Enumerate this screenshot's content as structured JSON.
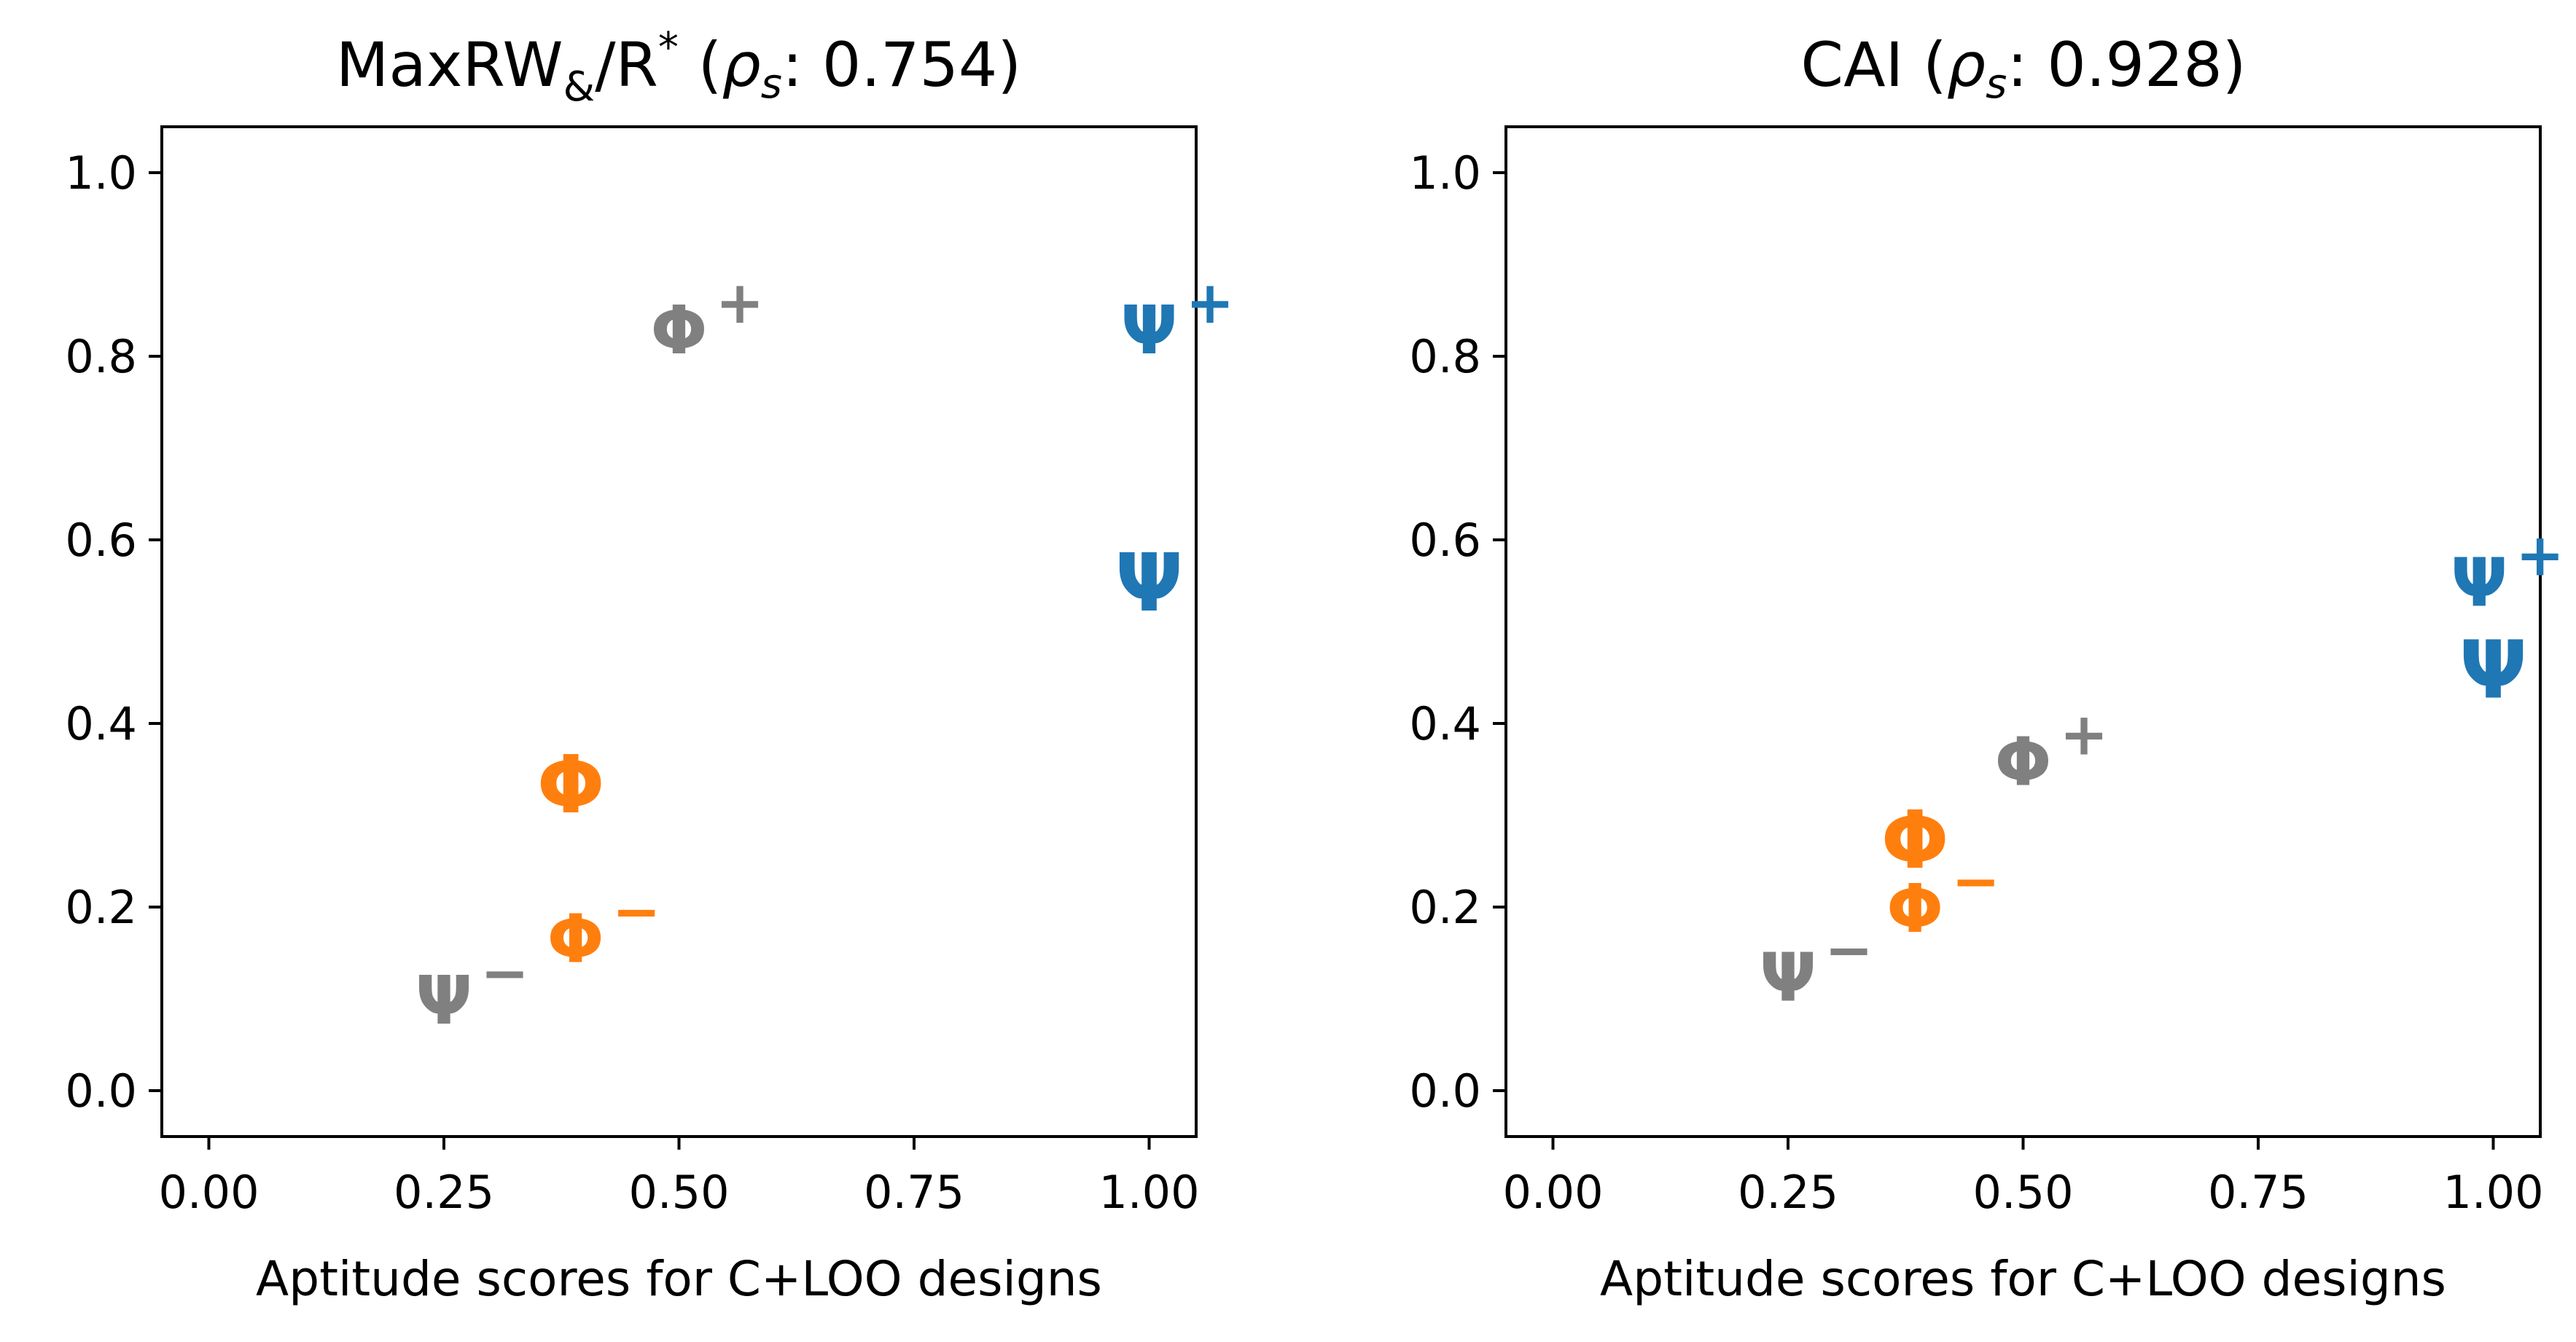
{
  "chart_data": [
    {
      "type": "scatter",
      "title": {
        "main": "MaxRW",
        "sub": "&",
        "tail": "/R",
        "sup": "*",
        "open": " (",
        "rho": "ρ",
        "rho_sub": "s",
        "value": ": 0.754)"
      },
      "xlabel": "Aptitude scores for C+LOO designs",
      "ylabel": "",
      "xlim": [
        -0.05,
        1.05
      ],
      "ylim": [
        -0.05,
        1.05
      ],
      "xticks": [
        "0.00",
        "0.25",
        "0.50",
        "0.75",
        "1.00"
      ],
      "yticks": [
        "0.0",
        "0.2",
        "0.4",
        "0.6",
        "0.8",
        "1.0"
      ],
      "points": [
        {
          "label": "Φ+",
          "x": 0.5,
          "y": 0.83,
          "color": "#808080"
        },
        {
          "label": "Ψ+",
          "x": 1.0,
          "y": 0.83,
          "color": "#1f77b4"
        },
        {
          "label": "Ψ",
          "x": 1.0,
          "y": 0.55,
          "color": "#1f77b4"
        },
        {
          "label": "Φ",
          "x": 0.385,
          "y": 0.33,
          "color": "#ff7f0e"
        },
        {
          "label": "Φ−",
          "x": 0.39,
          "y": 0.167,
          "color": "#ff7f0e"
        },
        {
          "label": "Ψ−",
          "x": 0.25,
          "y": 0.1,
          "color": "#808080"
        }
      ]
    },
    {
      "type": "scatter",
      "title": {
        "main": "CAI",
        "open": " (",
        "rho": "ρ",
        "rho_sub": "s",
        "value": ": 0.928)"
      },
      "xlabel": "Aptitude scores for C+LOO designs",
      "ylabel": "",
      "xlim": [
        -0.05,
        1.05
      ],
      "ylim": [
        -0.05,
        1.05
      ],
      "xticks": [
        "0.00",
        "0.25",
        "0.50",
        "0.75",
        "1.00"
      ],
      "yticks": [
        "0.0",
        "0.2",
        "0.4",
        "0.6",
        "0.8",
        "1.0"
      ],
      "points": [
        {
          "label": "Ψ+",
          "x": 0.985,
          "y": 0.555,
          "color": "#1f77b4"
        },
        {
          "label": "Ψ",
          "x": 1.0,
          "y": 0.455,
          "color": "#1f77b4"
        },
        {
          "label": "Φ+",
          "x": 0.5,
          "y": 0.36,
          "color": "#808080"
        },
        {
          "label": "Φ",
          "x": 0.385,
          "y": 0.27,
          "color": "#ff7f0e"
        },
        {
          "label": "Φ−",
          "x": 0.385,
          "y": 0.2,
          "color": "#ff7f0e"
        },
        {
          "label": "Ψ−",
          "x": 0.25,
          "y": 0.125,
          "color": "#808080"
        }
      ]
    }
  ]
}
